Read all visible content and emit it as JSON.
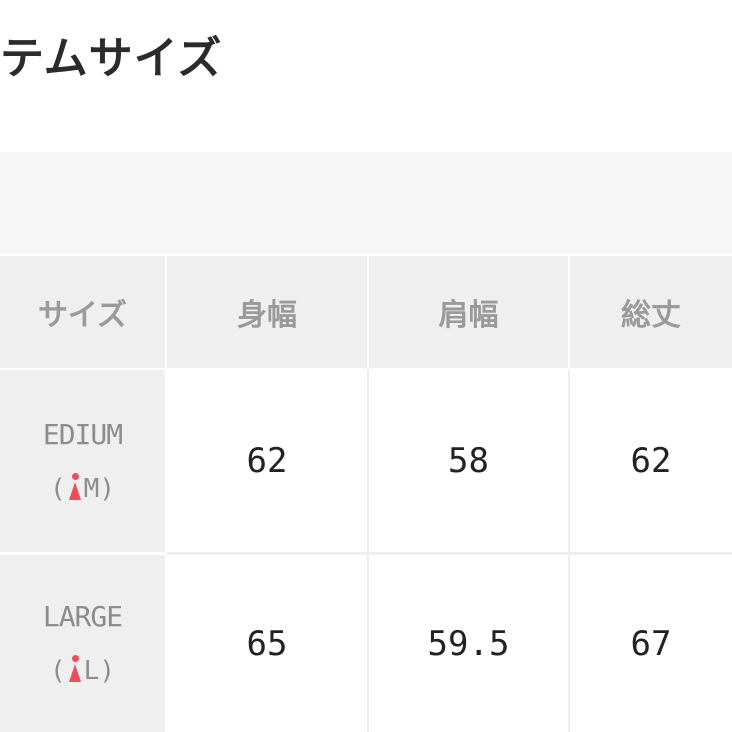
{
  "title": "テムサイズ",
  "table": {
    "headers": [
      "サイズ",
      "身幅",
      "肩幅",
      "総丈"
    ],
    "rows": [
      {
        "label": "EDIUM",
        "size": "M",
        "values": [
          "62",
          "58",
          "62"
        ]
      },
      {
        "label": "LARGE",
        "size": "L",
        "values": [
          "65",
          "59.5",
          "67"
        ]
      }
    ]
  },
  "colors": {
    "icon": "#e9505a",
    "header_bg": "#efefef"
  },
  "icons": {
    "size": "woman-icon"
  }
}
